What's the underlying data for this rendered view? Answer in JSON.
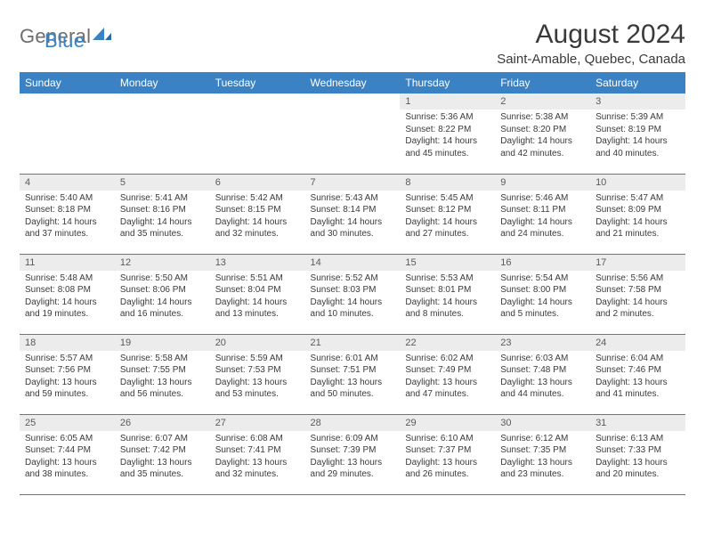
{
  "logo": {
    "part1": "General",
    "part2": "Blue",
    "accent_color": "#3a82c4",
    "gray_color": "#6e6e6e"
  },
  "title": "August 2024",
  "location": "Saint-Amable, Quebec, Canada",
  "days_of_week": [
    "Sunday",
    "Monday",
    "Tuesday",
    "Wednesday",
    "Thursday",
    "Friday",
    "Saturday"
  ],
  "colors": {
    "header_bg": "#3a82c4",
    "header_text": "#ffffff",
    "daynum_bg": "#ececec",
    "border": "#3a82c4",
    "text": "#3a3a3a"
  },
  "weeks": [
    [
      {
        "n": "",
        "sr": "",
        "ss": "",
        "dl": ""
      },
      {
        "n": "",
        "sr": "",
        "ss": "",
        "dl": ""
      },
      {
        "n": "",
        "sr": "",
        "ss": "",
        "dl": ""
      },
      {
        "n": "",
        "sr": "",
        "ss": "",
        "dl": ""
      },
      {
        "n": "1",
        "sr": "Sunrise: 5:36 AM",
        "ss": "Sunset: 8:22 PM",
        "dl": "Daylight: 14 hours and 45 minutes."
      },
      {
        "n": "2",
        "sr": "Sunrise: 5:38 AM",
        "ss": "Sunset: 8:20 PM",
        "dl": "Daylight: 14 hours and 42 minutes."
      },
      {
        "n": "3",
        "sr": "Sunrise: 5:39 AM",
        "ss": "Sunset: 8:19 PM",
        "dl": "Daylight: 14 hours and 40 minutes."
      }
    ],
    [
      {
        "n": "4",
        "sr": "Sunrise: 5:40 AM",
        "ss": "Sunset: 8:18 PM",
        "dl": "Daylight: 14 hours and 37 minutes."
      },
      {
        "n": "5",
        "sr": "Sunrise: 5:41 AM",
        "ss": "Sunset: 8:16 PM",
        "dl": "Daylight: 14 hours and 35 minutes."
      },
      {
        "n": "6",
        "sr": "Sunrise: 5:42 AM",
        "ss": "Sunset: 8:15 PM",
        "dl": "Daylight: 14 hours and 32 minutes."
      },
      {
        "n": "7",
        "sr": "Sunrise: 5:43 AM",
        "ss": "Sunset: 8:14 PM",
        "dl": "Daylight: 14 hours and 30 minutes."
      },
      {
        "n": "8",
        "sr": "Sunrise: 5:45 AM",
        "ss": "Sunset: 8:12 PM",
        "dl": "Daylight: 14 hours and 27 minutes."
      },
      {
        "n": "9",
        "sr": "Sunrise: 5:46 AM",
        "ss": "Sunset: 8:11 PM",
        "dl": "Daylight: 14 hours and 24 minutes."
      },
      {
        "n": "10",
        "sr": "Sunrise: 5:47 AM",
        "ss": "Sunset: 8:09 PM",
        "dl": "Daylight: 14 hours and 21 minutes."
      }
    ],
    [
      {
        "n": "11",
        "sr": "Sunrise: 5:48 AM",
        "ss": "Sunset: 8:08 PM",
        "dl": "Daylight: 14 hours and 19 minutes."
      },
      {
        "n": "12",
        "sr": "Sunrise: 5:50 AM",
        "ss": "Sunset: 8:06 PM",
        "dl": "Daylight: 14 hours and 16 minutes."
      },
      {
        "n": "13",
        "sr": "Sunrise: 5:51 AM",
        "ss": "Sunset: 8:04 PM",
        "dl": "Daylight: 14 hours and 13 minutes."
      },
      {
        "n": "14",
        "sr": "Sunrise: 5:52 AM",
        "ss": "Sunset: 8:03 PM",
        "dl": "Daylight: 14 hours and 10 minutes."
      },
      {
        "n": "15",
        "sr": "Sunrise: 5:53 AM",
        "ss": "Sunset: 8:01 PM",
        "dl": "Daylight: 14 hours and 8 minutes."
      },
      {
        "n": "16",
        "sr": "Sunrise: 5:54 AM",
        "ss": "Sunset: 8:00 PM",
        "dl": "Daylight: 14 hours and 5 minutes."
      },
      {
        "n": "17",
        "sr": "Sunrise: 5:56 AM",
        "ss": "Sunset: 7:58 PM",
        "dl": "Daylight: 14 hours and 2 minutes."
      }
    ],
    [
      {
        "n": "18",
        "sr": "Sunrise: 5:57 AM",
        "ss": "Sunset: 7:56 PM",
        "dl": "Daylight: 13 hours and 59 minutes."
      },
      {
        "n": "19",
        "sr": "Sunrise: 5:58 AM",
        "ss": "Sunset: 7:55 PM",
        "dl": "Daylight: 13 hours and 56 minutes."
      },
      {
        "n": "20",
        "sr": "Sunrise: 5:59 AM",
        "ss": "Sunset: 7:53 PM",
        "dl": "Daylight: 13 hours and 53 minutes."
      },
      {
        "n": "21",
        "sr": "Sunrise: 6:01 AM",
        "ss": "Sunset: 7:51 PM",
        "dl": "Daylight: 13 hours and 50 minutes."
      },
      {
        "n": "22",
        "sr": "Sunrise: 6:02 AM",
        "ss": "Sunset: 7:49 PM",
        "dl": "Daylight: 13 hours and 47 minutes."
      },
      {
        "n": "23",
        "sr": "Sunrise: 6:03 AM",
        "ss": "Sunset: 7:48 PM",
        "dl": "Daylight: 13 hours and 44 minutes."
      },
      {
        "n": "24",
        "sr": "Sunrise: 6:04 AM",
        "ss": "Sunset: 7:46 PM",
        "dl": "Daylight: 13 hours and 41 minutes."
      }
    ],
    [
      {
        "n": "25",
        "sr": "Sunrise: 6:05 AM",
        "ss": "Sunset: 7:44 PM",
        "dl": "Daylight: 13 hours and 38 minutes."
      },
      {
        "n": "26",
        "sr": "Sunrise: 6:07 AM",
        "ss": "Sunset: 7:42 PM",
        "dl": "Daylight: 13 hours and 35 minutes."
      },
      {
        "n": "27",
        "sr": "Sunrise: 6:08 AM",
        "ss": "Sunset: 7:41 PM",
        "dl": "Daylight: 13 hours and 32 minutes."
      },
      {
        "n": "28",
        "sr": "Sunrise: 6:09 AM",
        "ss": "Sunset: 7:39 PM",
        "dl": "Daylight: 13 hours and 29 minutes."
      },
      {
        "n": "29",
        "sr": "Sunrise: 6:10 AM",
        "ss": "Sunset: 7:37 PM",
        "dl": "Daylight: 13 hours and 26 minutes."
      },
      {
        "n": "30",
        "sr": "Sunrise: 6:12 AM",
        "ss": "Sunset: 7:35 PM",
        "dl": "Daylight: 13 hours and 23 minutes."
      },
      {
        "n": "31",
        "sr": "Sunrise: 6:13 AM",
        "ss": "Sunset: 7:33 PM",
        "dl": "Daylight: 13 hours and 20 minutes."
      }
    ]
  ]
}
